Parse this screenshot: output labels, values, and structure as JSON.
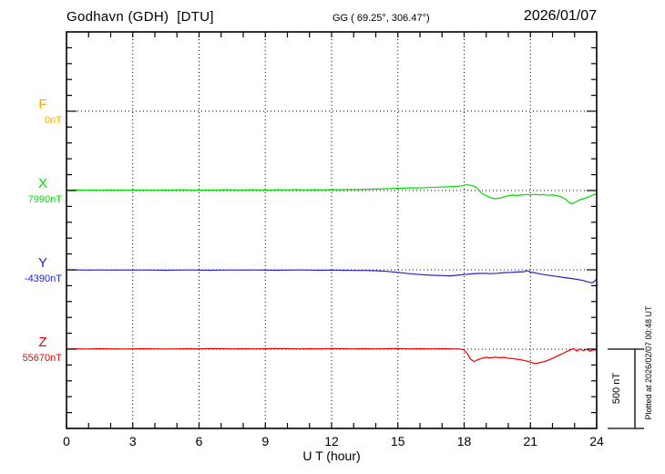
{
  "header": {
    "station_title": "Godhavn (GDH)  [DTU]",
    "coordinates": "GG ( 69.25°, 306.47°)",
    "date": "2026/01/07"
  },
  "side_notes": {
    "scale_bar_label": "500 nT",
    "plotted_at": "Plotted at 2026/02/07 00:48 UT"
  },
  "chart_data": {
    "type": "line",
    "title": "Godhavn (GDH) [DTU] magnetogram 2026/01/07",
    "xlabel": "U T (hour)",
    "x_range": [
      0,
      24
    ],
    "x_major_ticks": [
      0,
      3,
      6,
      9,
      12,
      15,
      18,
      21,
      24
    ],
    "x_minor_tick_step_hours": 1,
    "y_division_nT": 500,
    "y_minor_tick_nT": 100,
    "grid": "dotted verticals every 3 h; dotted horizontal at each channel baseline",
    "legend_position": "left channel labels",
    "scale_bar_nT": 500,
    "frame_color": "#000000",
    "series": [
      {
        "name": "F",
        "label": "F",
        "baseline_label": "0nT",
        "baseline_value_nT": 0,
        "color": "#FFAA00",
        "plotted": false,
        "points": []
      },
      {
        "name": "X",
        "label": "X",
        "baseline_label": "7990nT",
        "baseline_value_nT": 7990,
        "color": "#00DD00",
        "plotted": true,
        "points": [
          [
            0,
            2
          ],
          [
            0.4,
            4
          ],
          [
            0.8,
            2
          ],
          [
            1.2,
            3
          ],
          [
            1.6,
            2
          ],
          [
            2,
            4
          ],
          [
            2.4,
            3
          ],
          [
            2.8,
            2
          ],
          [
            3.2,
            4
          ],
          [
            3.6,
            3
          ],
          [
            4,
            2
          ],
          [
            4.4,
            4
          ],
          [
            4.8,
            3
          ],
          [
            5.2,
            5
          ],
          [
            5.6,
            3
          ],
          [
            6,
            2
          ],
          [
            6.4,
            4
          ],
          [
            6.8,
            3
          ],
          [
            7.2,
            5
          ],
          [
            7.6,
            4
          ],
          [
            8,
            3
          ],
          [
            8.4,
            5
          ],
          [
            8.8,
            4
          ],
          [
            9.2,
            3
          ],
          [
            9.6,
            5
          ],
          [
            10,
            4
          ],
          [
            10.4,
            6
          ],
          [
            10.8,
            4
          ],
          [
            11.2,
            5
          ],
          [
            11.6,
            4
          ],
          [
            12,
            6
          ],
          [
            12.4,
            5
          ],
          [
            12.8,
            7
          ],
          [
            13.2,
            6
          ],
          [
            13.6,
            8
          ],
          [
            14,
            9
          ],
          [
            14.4,
            11
          ],
          [
            14.8,
            13
          ],
          [
            15.2,
            15
          ],
          [
            15.6,
            17
          ],
          [
            16,
            16
          ],
          [
            16.4,
            19
          ],
          [
            16.8,
            21
          ],
          [
            17.2,
            23
          ],
          [
            17.6,
            26
          ],
          [
            17.9,
            30
          ],
          [
            18.1,
            37
          ],
          [
            18.3,
            33
          ],
          [
            18.5,
            25
          ],
          [
            18.65,
            5
          ],
          [
            18.8,
            -18
          ],
          [
            19,
            -32
          ],
          [
            19.2,
            -45
          ],
          [
            19.4,
            -52
          ],
          [
            19.6,
            -48
          ],
          [
            19.8,
            -40
          ],
          [
            20,
            -32
          ],
          [
            20.2,
            -28
          ],
          [
            20.4,
            -32
          ],
          [
            20.6,
            -28
          ],
          [
            20.8,
            -25
          ],
          [
            21,
            -28
          ],
          [
            21.2,
            -24
          ],
          [
            21.4,
            -28
          ],
          [
            21.6,
            -25
          ],
          [
            21.8,
            -30
          ],
          [
            22,
            -28
          ],
          [
            22.2,
            -33
          ],
          [
            22.4,
            -40
          ],
          [
            22.6,
            -55
          ],
          [
            22.75,
            -75
          ],
          [
            22.9,
            -85
          ],
          [
            23.05,
            -72
          ],
          [
            23.2,
            -60
          ],
          [
            23.4,
            -52
          ],
          [
            23.6,
            -42
          ],
          [
            23.8,
            -30
          ],
          [
            24,
            -20
          ]
        ]
      },
      {
        "name": "Y",
        "label": "Y",
        "baseline_label": "-4390nT",
        "baseline_value_nT": -4390,
        "color": "#2222CC",
        "plotted": true,
        "points": [
          [
            0,
            0
          ],
          [
            0.5,
            -1
          ],
          [
            1,
            -2
          ],
          [
            1.5,
            -1
          ],
          [
            2,
            -2
          ],
          [
            2.5,
            -1
          ],
          [
            3,
            -2
          ],
          [
            3.5,
            -1
          ],
          [
            4,
            -2
          ],
          [
            4.5,
            -3
          ],
          [
            5,
            -2
          ],
          [
            5.5,
            -1
          ],
          [
            6,
            -2
          ],
          [
            6.5,
            -3
          ],
          [
            7,
            -2
          ],
          [
            7.5,
            -1
          ],
          [
            8,
            -2
          ],
          [
            8.5,
            -1
          ],
          [
            9,
            -2
          ],
          [
            9.5,
            -3
          ],
          [
            10,
            -2
          ],
          [
            10.5,
            -1
          ],
          [
            11,
            -2
          ],
          [
            11.5,
            -3
          ],
          [
            12,
            -2
          ],
          [
            12.5,
            -3
          ],
          [
            13,
            -4
          ],
          [
            13.5,
            -4
          ],
          [
            14,
            -6
          ],
          [
            14.5,
            -10
          ],
          [
            15,
            -16
          ],
          [
            15.5,
            -24
          ],
          [
            16,
            -30
          ],
          [
            16.5,
            -34
          ],
          [
            17,
            -36
          ],
          [
            17.4,
            -38
          ],
          [
            17.7,
            -34
          ],
          [
            18,
            -30
          ],
          [
            18.3,
            -26
          ],
          [
            18.6,
            -23
          ],
          [
            18.9,
            -22
          ],
          [
            19.2,
            -24
          ],
          [
            19.5,
            -22
          ],
          [
            19.8,
            -18
          ],
          [
            20.1,
            -16
          ],
          [
            20.4,
            -14
          ],
          [
            20.7,
            -12
          ],
          [
            20.85,
            -5
          ],
          [
            21,
            -14
          ],
          [
            21.3,
            -22
          ],
          [
            21.6,
            -30
          ],
          [
            21.9,
            -36
          ],
          [
            22.2,
            -42
          ],
          [
            22.5,
            -48
          ],
          [
            22.8,
            -54
          ],
          [
            23.1,
            -60
          ],
          [
            23.4,
            -68
          ],
          [
            23.6,
            -76
          ],
          [
            23.8,
            -82
          ],
          [
            23.9,
            -72
          ],
          [
            24,
            -58
          ]
        ]
      },
      {
        "name": "Z",
        "label": "Z",
        "baseline_label": "55670nT",
        "baseline_value_nT": 55670,
        "color": "#EE0000",
        "plotted": true,
        "points": [
          [
            0,
            1
          ],
          [
            0.5,
            2
          ],
          [
            1,
            1
          ],
          [
            1.5,
            3
          ],
          [
            2,
            2
          ],
          [
            2.5,
            1
          ],
          [
            3,
            2
          ],
          [
            3.5,
            3
          ],
          [
            4,
            2
          ],
          [
            4.5,
            1
          ],
          [
            5,
            2
          ],
          [
            5.5,
            3
          ],
          [
            6,
            2
          ],
          [
            6.5,
            4
          ],
          [
            7,
            3
          ],
          [
            7.5,
            2
          ],
          [
            8,
            3
          ],
          [
            8.5,
            2
          ],
          [
            9,
            3
          ],
          [
            9.5,
            4
          ],
          [
            10,
            3
          ],
          [
            10.5,
            2
          ],
          [
            11,
            3
          ],
          [
            11.5,
            2
          ],
          [
            12,
            4
          ],
          [
            12.5,
            3
          ],
          [
            13,
            2
          ],
          [
            13.5,
            3
          ],
          [
            14,
            2
          ],
          [
            14.5,
            3
          ],
          [
            15,
            4
          ],
          [
            15.5,
            2
          ],
          [
            16,
            3
          ],
          [
            16.5,
            2
          ],
          [
            17,
            3
          ],
          [
            17.4,
            2
          ],
          [
            17.8,
            1
          ],
          [
            18,
            -5
          ],
          [
            18.15,
            -30
          ],
          [
            18.3,
            -65
          ],
          [
            18.45,
            -78
          ],
          [
            18.6,
            -68
          ],
          [
            18.8,
            -58
          ],
          [
            19,
            -52
          ],
          [
            19.2,
            -55
          ],
          [
            19.4,
            -50
          ],
          [
            19.6,
            -54
          ],
          [
            19.8,
            -52
          ],
          [
            20,
            -58
          ],
          [
            20.2,
            -60
          ],
          [
            20.4,
            -64
          ],
          [
            20.6,
            -68
          ],
          [
            20.8,
            -74
          ],
          [
            21,
            -82
          ],
          [
            21.2,
            -90
          ],
          [
            21.4,
            -86
          ],
          [
            21.6,
            -80
          ],
          [
            21.8,
            -70
          ],
          [
            22,
            -58
          ],
          [
            22.2,
            -45
          ],
          [
            22.4,
            -32
          ],
          [
            22.6,
            -18
          ],
          [
            22.8,
            -5
          ],
          [
            22.95,
            4
          ],
          [
            23.1,
            -12
          ],
          [
            23.25,
            2
          ],
          [
            23.4,
            -10
          ],
          [
            23.55,
            0
          ],
          [
            23.7,
            -14
          ],
          [
            23.85,
            -4
          ],
          [
            24,
            -6
          ]
        ]
      }
    ]
  }
}
